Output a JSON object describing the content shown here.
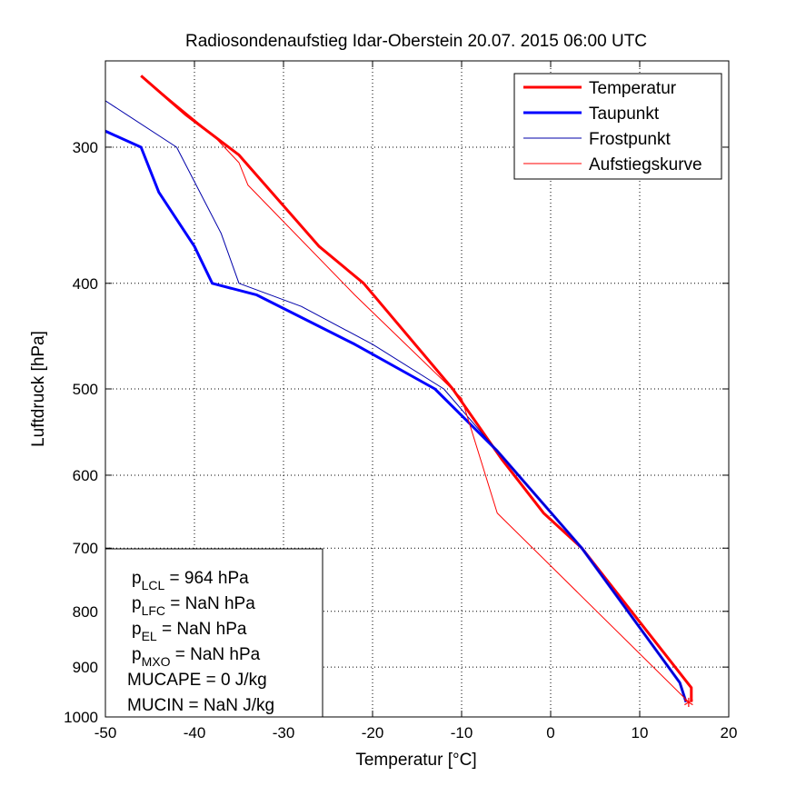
{
  "chart_data": {
    "type": "line",
    "title": "Radiosondenaufstieg Idar-Oberstein 20.07. 2015 06:00 UTC",
    "xlabel": "Temperatur [°C]",
    "ylabel": "Luftdruck [hPa]",
    "xlim": [
      -50,
      20
    ],
    "ylim": [
      250,
      1000
    ],
    "y_scale": "log",
    "y_reversed": true,
    "grid": true,
    "x_ticks": [
      -50,
      -40,
      -30,
      -20,
      -10,
      0,
      10,
      20
    ],
    "y_ticks": [
      300,
      400,
      500,
      600,
      700,
      800,
      900,
      1000
    ],
    "legend_position": "top-right",
    "series": [
      {
        "name": "Temperatur",
        "color": "#ff0000",
        "width": "thick",
        "points": [
          [
            15.8,
            969
          ],
          [
            15.8,
            940
          ],
          [
            3.5,
            700
          ],
          [
            -0.8,
            650
          ],
          [
            -5.5,
            580
          ],
          [
            -11,
            500
          ],
          [
            -21,
            400
          ],
          [
            -26,
            370
          ],
          [
            -35,
            305
          ],
          [
            -41,
            280
          ],
          [
            -46,
            258
          ]
        ]
      },
      {
        "name": "Taupunkt",
        "color": "#0000ff",
        "width": "thick",
        "points": [
          [
            15.2,
            969
          ],
          [
            14.5,
            930
          ],
          [
            3.5,
            700
          ],
          [
            -6,
            570
          ],
          [
            -13,
            500
          ],
          [
            -22,
            455
          ],
          [
            -33,
            410
          ],
          [
            -38,
            400
          ],
          [
            -40,
            370
          ],
          [
            -44,
            330
          ],
          [
            -46,
            300
          ],
          [
            -50,
            290
          ]
        ]
      },
      {
        "name": "Frostpunkt",
        "color": "#0000aa",
        "width": "thin",
        "points": [
          [
            15.2,
            969
          ],
          [
            14.5,
            930
          ],
          [
            3.5,
            700
          ],
          [
            -6,
            570
          ],
          [
            -12,
            500
          ],
          [
            -20,
            455
          ],
          [
            -28,
            420
          ],
          [
            -35,
            400
          ],
          [
            -37,
            360
          ],
          [
            -42,
            300
          ],
          [
            -50,
            272
          ]
        ]
      },
      {
        "name": "Aufstiegskurve",
        "color": "#ff0000",
        "width": "thin",
        "points": [
          [
            15.5,
            969
          ],
          [
            -6,
            650
          ],
          [
            -10,
            510
          ],
          [
            -22,
            410
          ],
          [
            -34,
            325
          ],
          [
            -35,
            310
          ],
          [
            -38,
            292
          ],
          [
            -46,
            258
          ]
        ]
      }
    ],
    "annotations": [
      {
        "base": "p",
        "sub": "LCL",
        "rest": " = 964 hPa"
      },
      {
        "base": "p",
        "sub": "LFC",
        "rest": " = NaN hPa"
      },
      {
        "base": "p",
        "sub": "EL",
        "rest": " = NaN hPa"
      },
      {
        "base": "p",
        "sub": "MXO",
        "rest": " = NaN hPa"
      },
      {
        "base": "MUCAPE = 0 J/kg",
        "sub": "",
        "rest": ""
      },
      {
        "base": "MUCIN = NaN J/kg",
        "sub": "",
        "rest": ""
      }
    ],
    "surface_marker": {
      "symbol": "*",
      "color": "#ff0000",
      "x": 15.5,
      "y": 969
    }
  }
}
